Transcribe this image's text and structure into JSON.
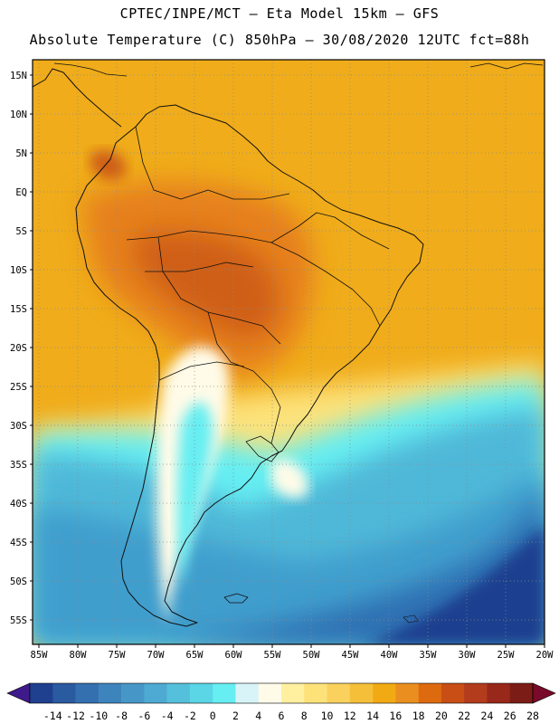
{
  "header": {
    "line1": "CPTEC/INPE/MCT –  Eta Model 15km – GFS",
    "line2": "Absolute Temperature (C) 850hPa – 30/08/2020 12UTC fct=88h"
  },
  "map": {
    "region": "South America",
    "variable": "Absolute Temperature (C) 850hPa",
    "lat_range": [
      -58,
      17
    ],
    "lon_range": [
      -86,
      -20
    ],
    "lat_labels": [
      "15N",
      "10N",
      "5N",
      "EQ",
      "5S",
      "10S",
      "15S",
      "20S",
      "25S",
      "30S",
      "35S",
      "40S",
      "45S",
      "50S",
      "55S"
    ],
    "lon_labels": [
      "85W",
      "80W",
      "75W",
      "70W",
      "65W",
      "60W",
      "55W",
      "50W",
      "45W",
      "40W",
      "35W",
      "30W",
      "25W",
      "20W"
    ]
  },
  "colorbar": {
    "labels": [
      "-14",
      "-12",
      "-10",
      "-8",
      "-6",
      "-4",
      "-2",
      "0",
      "2",
      "4",
      "6",
      "8",
      "10",
      "12",
      "14",
      "16",
      "18",
      "20",
      "22",
      "24",
      "26",
      "28"
    ],
    "colors": [
      "#1f3f8f",
      "#2a5aa0",
      "#3470b0",
      "#3d84bd",
      "#4697c7",
      "#4eaad2",
      "#55c0dc",
      "#5ad6e6",
      "#66eef2",
      "#d8f4f8",
      "#fffbe8",
      "#fff0a0",
      "#fde27a",
      "#f9d15c",
      "#f5bf3a",
      "#f2aa14",
      "#ea8f1f",
      "#de6a10",
      "#c94e16",
      "#b23c1b",
      "#98281a",
      "#7c1c16"
    ],
    "under_color": "#3f1a8a",
    "over_color": "#7a0a2a"
  }
}
